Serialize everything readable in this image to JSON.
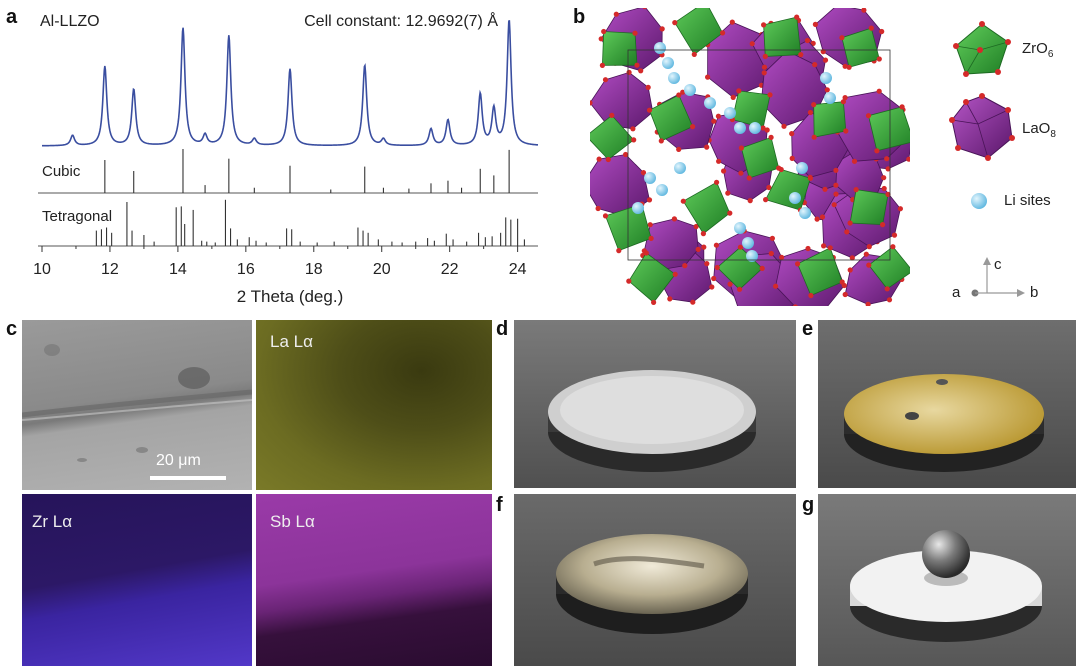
{
  "panels": {
    "a": "a",
    "b": "b",
    "c": "c",
    "d": "d",
    "e": "e",
    "f": "f",
    "g": "g"
  },
  "chart_data": {
    "type": "line",
    "title": "Al-LLZO",
    "annotation": "Cell constant: 12.9692(7) Å",
    "xlabel": "2 Theta (deg.)",
    "ylabel": "",
    "xlim": [
      10,
      24.6
    ],
    "xticks": [
      10,
      12,
      14,
      16,
      18,
      20,
      22,
      24
    ],
    "grid": false,
    "series": [
      {
        "name": "Al-LLZO",
        "color": "#3a4ea0",
        "peaks": [
          [
            10.9,
            0.08
          ],
          [
            11.85,
            0.62
          ],
          [
            12.7,
            0.44
          ],
          [
            14.15,
            0.92
          ],
          [
            14.8,
            0.08
          ],
          [
            15.5,
            0.86
          ],
          [
            16.25,
            0.05
          ],
          [
            17.3,
            0.6
          ],
          [
            19.5,
            0.63
          ],
          [
            20.05,
            0.05
          ],
          [
            21.45,
            0.13
          ],
          [
            21.95,
            0.2
          ],
          [
            22.9,
            0.4
          ],
          [
            23.3,
            0.28
          ],
          [
            23.75,
            0.98
          ]
        ]
      }
    ],
    "references": [
      {
        "name": "Cubic",
        "lines": [
          [
            11.85,
            0.75
          ],
          [
            12.7,
            0.5
          ],
          [
            14.15,
            1.0
          ],
          [
            14.8,
            0.18
          ],
          [
            15.5,
            0.78
          ],
          [
            16.25,
            0.12
          ],
          [
            17.3,
            0.62
          ],
          [
            18.5,
            0.08
          ],
          [
            19.5,
            0.6
          ],
          [
            20.05,
            0.12
          ],
          [
            20.8,
            0.1
          ],
          [
            21.45,
            0.22
          ],
          [
            21.95,
            0.28
          ],
          [
            22.35,
            0.12
          ],
          [
            22.9,
            0.55
          ],
          [
            23.3,
            0.4
          ],
          [
            23.75,
            0.98
          ]
        ]
      },
      {
        "name": "Tetragonal",
        "lines": [
          [
            11.6,
            0.35
          ],
          [
            11.75,
            0.38
          ],
          [
            11.9,
            0.42
          ],
          [
            12.05,
            0.3
          ],
          [
            12.5,
            1.0
          ],
          [
            12.65,
            0.35
          ],
          [
            13.0,
            0.25
          ],
          [
            13.3,
            0.1
          ],
          [
            13.95,
            0.88
          ],
          [
            14.1,
            0.9
          ],
          [
            14.2,
            0.5
          ],
          [
            14.45,
            0.82
          ],
          [
            14.7,
            0.12
          ],
          [
            14.85,
            0.1
          ],
          [
            15.1,
            0.08
          ],
          [
            15.4,
            1.05
          ],
          [
            15.55,
            0.4
          ],
          [
            15.75,
            0.15
          ],
          [
            16.1,
            0.2
          ],
          [
            16.3,
            0.12
          ],
          [
            16.6,
            0.08
          ],
          [
            17.2,
            0.4
          ],
          [
            17.35,
            0.38
          ],
          [
            17.6,
            0.1
          ],
          [
            18.1,
            0.08
          ],
          [
            18.6,
            0.1
          ],
          [
            19.3,
            0.42
          ],
          [
            19.45,
            0.35
          ],
          [
            19.6,
            0.3
          ],
          [
            19.9,
            0.15
          ],
          [
            20.3,
            0.1
          ],
          [
            20.6,
            0.08
          ],
          [
            21.0,
            0.1
          ],
          [
            21.35,
            0.18
          ],
          [
            21.55,
            0.12
          ],
          [
            21.9,
            0.28
          ],
          [
            22.1,
            0.15
          ],
          [
            22.5,
            0.1
          ],
          [
            22.85,
            0.3
          ],
          [
            23.05,
            0.2
          ],
          [
            23.25,
            0.22
          ],
          [
            23.5,
            0.3
          ],
          [
            23.65,
            0.65
          ],
          [
            23.8,
            0.6
          ],
          [
            24.0,
            0.62
          ],
          [
            24.2,
            0.15
          ]
        ]
      }
    ]
  },
  "structure_legend": {
    "zro6": {
      "base": "ZrO",
      "sub": "6"
    },
    "lao8": {
      "base": "LaO",
      "sub": "8"
    },
    "li": "Li sites",
    "axes": {
      "a": "a",
      "b": "b",
      "c": "c"
    }
  },
  "eds": {
    "scale_bar": "20 μm",
    "la": "La Lα",
    "zr": "Zr Lα",
    "sb": "Sb Lα"
  },
  "colors": {
    "zro6": "#3aa73c",
    "lao8": "#8a2c9a",
    "li": "#79c6e8",
    "oxygen": "#d42a2a",
    "spectrum": "#3a4ea0"
  }
}
